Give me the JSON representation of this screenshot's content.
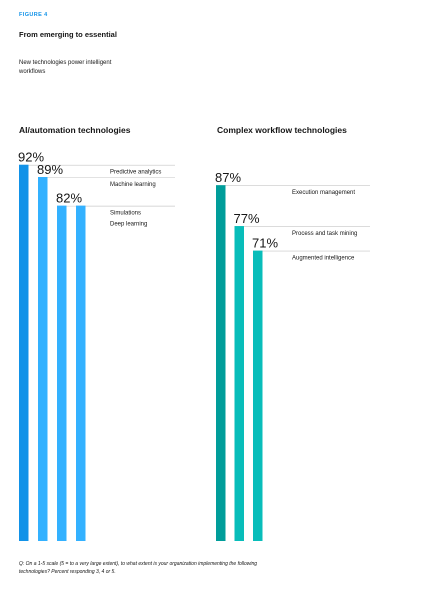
{
  "figure_label": "FIGURE 4",
  "title": "From emerging to essential",
  "subtitle": "New technologies power intelligent workflows",
  "footnote": "Q: On a 1-5 scale (5 = to a very large extent), to what extent is your organization implementing the following technologies? Percent responding 3, 4 or 5.",
  "chart_data": [
    {
      "type": "bar",
      "title": "AI/automation technologies",
      "categories": [
        "Predictive analytics",
        "Machine learning",
        "Simulations",
        "Deep learning"
      ],
      "values": [
        92,
        89,
        82,
        82
      ],
      "value_labels": [
        "92%",
        "89%",
        "82%",
        ""
      ],
      "unit": "%",
      "ylim": [
        0,
        100
      ],
      "colors": [
        "#1192e8",
        "#33b1ff",
        "#33b1ff",
        "#33b1ff"
      ]
    },
    {
      "type": "bar",
      "title": "Complex workflow technologies",
      "categories": [
        "Execution management",
        "Process and task mining",
        "Augmented intelligence"
      ],
      "values": [
        87,
        77,
        71
      ],
      "value_labels": [
        "87%",
        "77%",
        "71%"
      ],
      "unit": "%",
      "ylim": [
        0,
        100
      ],
      "colors": [
        "#009d9a",
        "#08bdba",
        "#08bdba"
      ]
    }
  ]
}
